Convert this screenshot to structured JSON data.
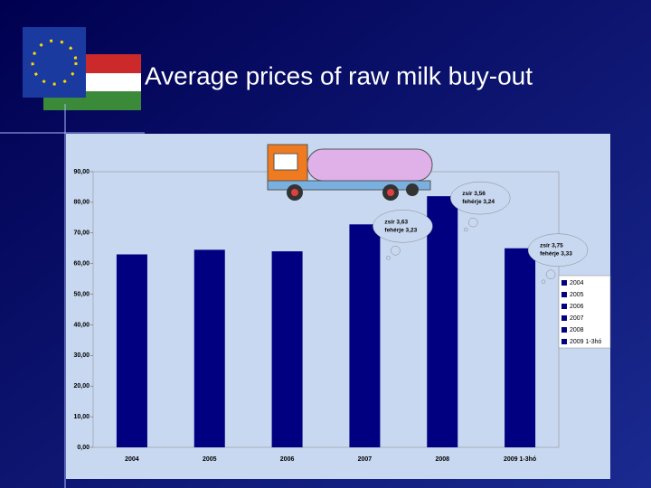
{
  "chart_data": {
    "type": "bar",
    "title": "Average prices of raw milk buy-out",
    "categories": [
      "2004",
      "2005",
      "2006",
      "2007",
      "2008",
      "2009 1-3hó"
    ],
    "values": [
      63,
      64.5,
      64,
      72.8,
      82,
      65
    ],
    "color": "#000080",
    "ylim": [
      0,
      90
    ],
    "yticks": [
      {
        "value": 0,
        "label": "0,00"
      },
      {
        "value": 10,
        "label": "10,00"
      },
      {
        "value": 20,
        "label": "20,00"
      },
      {
        "value": 30,
        "label": "30,00"
      },
      {
        "value": 40,
        "label": "40,00"
      },
      {
        "value": 50,
        "label": "50,00"
      },
      {
        "value": 60,
        "label": "60,00"
      },
      {
        "value": 70,
        "label": "70,00"
      },
      {
        "value": 80,
        "label": "80,00"
      },
      {
        "value": 90,
        "label": "90,00"
      }
    ],
    "legend": "right",
    "annotations": [
      {
        "line1": "zsír 3,63",
        "line2": "fehérje 3,23",
        "category": 3
      },
      {
        "line1": "zsír 3,56",
        "line2": "fehérje 3,24",
        "category": 4
      },
      {
        "line1": "zsír 3,75",
        "line2": "fehérje 3,33",
        "category": 5
      }
    ]
  }
}
